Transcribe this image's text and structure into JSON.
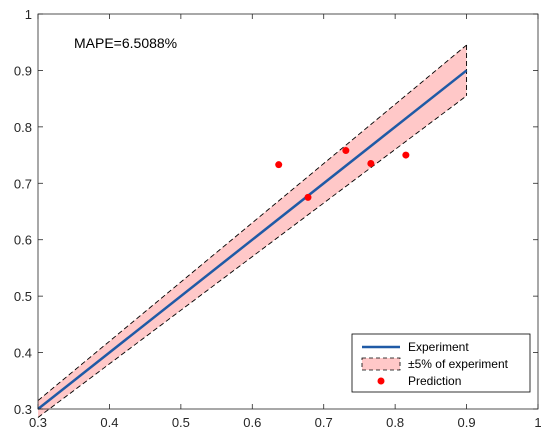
{
  "chart_data": {
    "type": "line",
    "xlim": [
      0.3,
      1
    ],
    "ylim": [
      0.3,
      1
    ],
    "xticks": [
      0.3,
      0.4,
      0.5,
      0.6,
      0.7,
      0.8,
      0.9,
      1
    ],
    "yticks": [
      0.3,
      0.4,
      0.5,
      0.6,
      0.7,
      0.8,
      0.9,
      1
    ],
    "x_tick_labels": [
      "0.3",
      "0.4",
      "0.5",
      "0.6",
      "0.7",
      "0.8",
      "0.9",
      "1"
    ],
    "y_tick_labels": [
      "0.3",
      "0.4",
      "0.5",
      "0.6",
      "0.7",
      "0.8",
      "0.9",
      "1"
    ],
    "grid": false,
    "annotation": "MAPE=6.5088%",
    "legend_position": "bottom-right",
    "series": [
      {
        "name": "Experiment",
        "kind": "line",
        "color": "#1f5aa6",
        "x": [
          0.3,
          0.9
        ],
        "y": [
          0.3,
          0.9
        ]
      },
      {
        "name": "±5% of experiment",
        "kind": "band",
        "fill": "#ffc8c8",
        "edge_color": "#000000",
        "x": [
          0.3,
          0.9
        ],
        "lower": [
          0.285,
          0.855
        ],
        "upper": [
          0.315,
          0.945
        ]
      },
      {
        "name": "Prediction",
        "kind": "scatter",
        "color": "#ff0000",
        "x": [
          0.637,
          0.678,
          0.731,
          0.766,
          0.815
        ],
        "y": [
          0.733,
          0.675,
          0.758,
          0.735,
          0.75
        ]
      }
    ]
  }
}
